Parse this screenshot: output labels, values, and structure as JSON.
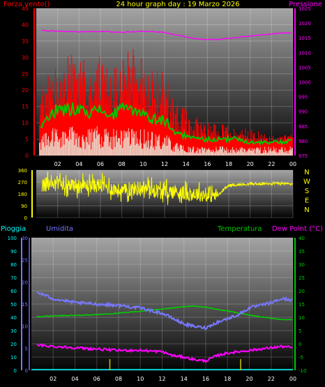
{
  "header": {
    "wind_title": "Forza vento()",
    "graph_title": "24 hour graph day : 19 Marzo 2026",
    "pressure_title": "Pressione"
  },
  "bottom_header": {
    "rain": "Pioggia",
    "humidity": "Umidita",
    "temperature": "Temperatura",
    "dewpoint": "Dew Point (°C)"
  },
  "colors": {
    "wind": "#ff0000",
    "gust_green": "#00c800",
    "avg_white": "#ffffff",
    "pressure": "#ff00ff",
    "direction": "#ffff00",
    "humidity": "#7878ff",
    "temperature": "#00d200",
    "dewpoint": "#ff00ff",
    "rain": "#c8c800",
    "rain_total": "#00ffff",
    "grid": "#ffffff",
    "plot_bg_top": "#9a9a9a",
    "plot_bg_bottom": "#050505"
  },
  "chart_data": [
    {
      "type": "line",
      "name": "wind-pressure",
      "x_ticks": [
        "02",
        "04",
        "06",
        "08",
        "10",
        "12",
        "14",
        "16",
        "18",
        "20",
        "22",
        "00"
      ],
      "y_left_ticks": [
        0,
        5,
        10,
        15,
        20,
        25,
        30,
        35,
        40,
        45
      ],
      "y_right_ticks": [
        975,
        980,
        985,
        990,
        995,
        1000,
        1005,
        1010,
        1015,
        1020,
        1025
      ],
      "xlim": [
        0,
        24
      ],
      "ylim_left": [
        0,
        45
      ],
      "ylim_right": [
        975,
        1025
      ],
      "grid": true,
      "series": [
        {
          "name": "Pressione",
          "axis": "right",
          "x": [
            0.5,
            2,
            4,
            6,
            8,
            10,
            12,
            13,
            14,
            15,
            16,
            17,
            18,
            19,
            20,
            21,
            22,
            23,
            24
          ],
          "values": [
            1017.5,
            1017.2,
            1017.0,
            1017.1,
            1016.9,
            1017.2,
            1016.8,
            1016.0,
            1015.3,
            1014.6,
            1014.4,
            1014.4,
            1014.8,
            1015.2,
            1015.6,
            1016.0,
            1016.3,
            1016.6,
            1016.7
          ]
        }
      ],
      "wind_envelope": {
        "x": [
          0.5,
          1,
          2,
          3,
          4,
          5,
          6,
          7,
          8,
          9,
          10,
          11,
          12,
          13,
          14,
          15,
          16,
          17,
          18,
          19,
          20,
          21,
          22,
          23,
          24
        ],
        "gust_peak": [
          22,
          28,
          30,
          31,
          32,
          30,
          31,
          29,
          30,
          33,
          30,
          28,
          25,
          20,
          14,
          12,
          11,
          10,
          9,
          8,
          9,
          7,
          6,
          6,
          7
        ],
        "gust_avg": [
          8,
          12,
          14,
          14,
          15,
          13,
          14,
          12,
          14,
          14,
          13,
          11,
          11,
          7,
          6,
          5,
          5,
          5,
          5,
          5,
          4,
          4,
          4,
          4,
          5
        ],
        "wind_avg": [
          4,
          6,
          6,
          7,
          6,
          6,
          7,
          6,
          6,
          6,
          6,
          5,
          5,
          3,
          2,
          2,
          2,
          2,
          2,
          2,
          2,
          2,
          2,
          2,
          2
        ]
      }
    },
    {
      "type": "line",
      "name": "wind-direction",
      "x_ticks": [
        "02",
        "04",
        "06",
        "08",
        "10",
        "12",
        "14",
        "16",
        "18",
        "20",
        "22",
        "00"
      ],
      "y_left_ticks": [
        0,
        90,
        180,
        270,
        360
      ],
      "compass_labels": [
        "N",
        "W",
        "S",
        "E",
        "N"
      ],
      "xlim": [
        0,
        24
      ],
      "ylim": [
        0,
        360
      ],
      "grid": true,
      "series": [
        {
          "name": "direction",
          "x": [
            0.5,
            2,
            4,
            6,
            8,
            10,
            12,
            13,
            14,
            15,
            16,
            17,
            18,
            19,
            20,
            21,
            22,
            23,
            24
          ],
          "values": [
            250,
            260,
            240,
            245,
            200,
            230,
            190,
            200,
            180,
            180,
            170,
            170,
            245,
            250,
            255,
            255,
            260,
            258,
            255
          ]
        }
      ]
    },
    {
      "type": "line",
      "name": "rain-humidity-temperature",
      "x_ticks": [
        "02",
        "04",
        "06",
        "08",
        "10",
        "12",
        "14",
        "16",
        "18",
        "20",
        "22",
        "00"
      ],
      "y_rain_ticks": [
        0,
        10,
        20,
        30,
        40,
        50,
        60,
        70,
        80,
        90,
        100
      ],
      "y_humidity_ticks": [
        0,
        5,
        10,
        15,
        20,
        25,
        30
      ],
      "y_temp_ticks": [
        -10,
        -5,
        0,
        5,
        10,
        15,
        20,
        25,
        30,
        35,
        40
      ],
      "xlim": [
        0,
        24
      ],
      "ylim_rain": [
        0,
        100
      ],
      "ylim_temp": [
        -10,
        40
      ],
      "grid": true,
      "series": [
        {
          "name": "Temperatura",
          "axis": "temp",
          "x": [
            0.5,
            2,
            4,
            6,
            8,
            10,
            12,
            13,
            14,
            15,
            16,
            17,
            18,
            19,
            20,
            21,
            22,
            23,
            24
          ],
          "values": [
            10.2,
            10.5,
            10.7,
            11.0,
            11.5,
            12.3,
            13.0,
            13.5,
            14.0,
            14.2,
            13.8,
            13.0,
            12.4,
            11.6,
            10.8,
            10.2,
            9.6,
            9.2,
            9.0
          ]
        },
        {
          "name": "Umidita",
          "axis": "temp",
          "x": [
            0.5,
            2,
            4,
            6,
            8,
            10,
            12,
            13,
            14,
            15,
            16,
            17,
            18,
            19,
            20,
            21,
            22,
            23,
            24
          ],
          "values": [
            19.5,
            17.0,
            15.5,
            15.0,
            14.5,
            13.5,
            11.5,
            9.5,
            7.5,
            6.5,
            6.0,
            8.0,
            9.5,
            11.0,
            13.5,
            14.5,
            15.5,
            17.0,
            16.5
          ]
        },
        {
          "name": "Dew Point",
          "axis": "temp",
          "x": [
            0.5,
            2,
            4,
            6,
            8,
            10,
            12,
            13,
            14,
            15,
            16,
            17,
            18,
            19,
            20,
            21,
            22,
            23,
            24
          ],
          "values": [
            -0.5,
            -1.0,
            -1.5,
            -2.0,
            -2.5,
            -2.5,
            -3.0,
            -4.5,
            -5.0,
            -6.0,
            -6.5,
            -4.5,
            -3.5,
            -3.0,
            -2.5,
            -2.0,
            -1.5,
            -1.0,
            -1.5
          ]
        },
        {
          "name": "Pioggia",
          "axis": "rain",
          "x": [
            0,
            24
          ],
          "values": [
            0.5,
            0.5
          ]
        }
      ],
      "rain_ticks_x": [
        7.2,
        19.2
      ]
    }
  ]
}
